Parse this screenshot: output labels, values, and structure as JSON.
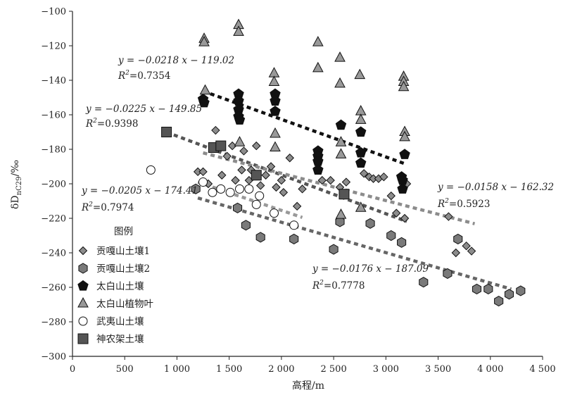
{
  "chart_data": {
    "type": "scatter",
    "xlabel": "高程/m",
    "ylabel": "δD",
    "ylabel_sub": "nC29",
    "ylabel_unit": "/‰",
    "xlim": [
      0,
      4500
    ],
    "ylim": [
      -300,
      -100
    ],
    "xticks": [
      0,
      500,
      1000,
      1500,
      2000,
      2500,
      3000,
      3500,
      4000,
      4500
    ],
    "xtick_labels": [
      "0",
      "500",
      "1 000",
      "1 500",
      "2 000",
      "2 500",
      "3 000",
      "3 500",
      "4 000",
      "4 500"
    ],
    "yticks": [
      -100,
      -120,
      -140,
      -160,
      -180,
      -200,
      -220,
      -240,
      -260,
      -280,
      -300
    ],
    "ytick_labels": [
      "−100",
      "−120",
      "−140",
      "−160",
      "−180",
      "−200",
      "−220",
      "−240",
      "−260",
      "−280",
      "−300"
    ],
    "grid": false,
    "legend_title": "图例",
    "legend_position": "bottom-left",
    "series": [
      {
        "name": "贡嘎山土壤1",
        "marker": "diamond",
        "fill": "#8c8c8c",
        "points": [
          [
            1200,
            -193
          ],
          [
            1250,
            -193
          ],
          [
            1300,
            -200
          ],
          [
            1370,
            -169
          ],
          [
            1430,
            -195
          ],
          [
            1480,
            -184
          ],
          [
            1530,
            -178
          ],
          [
            1560,
            -198
          ],
          [
            1620,
            -192
          ],
          [
            1640,
            -181
          ],
          [
            1690,
            -198
          ],
          [
            1710,
            -192
          ],
          [
            1760,
            -178
          ],
          [
            1800,
            -201
          ],
          [
            1850,
            -195
          ],
          [
            1900,
            -190
          ],
          [
            1950,
            -202
          ],
          [
            2000,
            -198
          ],
          [
            2020,
            -205
          ],
          [
            2080,
            -185
          ],
          [
            2150,
            -213
          ],
          [
            2200,
            -203
          ],
          [
            2390,
            -198
          ],
          [
            2470,
            -198
          ],
          [
            2560,
            -202
          ],
          [
            2620,
            -199
          ],
          [
            2790,
            -194
          ],
          [
            2840,
            -196
          ],
          [
            2880,
            -197
          ],
          [
            2930,
            -197
          ],
          [
            2980,
            -196
          ],
          [
            3050,
            -207
          ],
          [
            3100,
            -217
          ],
          [
            3180,
            -220
          ],
          [
            3200,
            -200
          ],
          [
            3600,
            -219
          ],
          [
            3670,
            -240
          ],
          [
            3770,
            -236
          ],
          [
            3820,
            -239
          ]
        ]
      },
      {
        "name": "贡嘎山土壤2",
        "marker": "hexagon",
        "fill": "#7a7a7a",
        "points": [
          [
            1180,
            -203
          ],
          [
            1580,
            -214
          ],
          [
            1660,
            -224
          ],
          [
            1800,
            -231
          ],
          [
            2120,
            -232
          ],
          [
            2500,
            -238
          ],
          [
            2560,
            -222
          ],
          [
            2850,
            -223
          ],
          [
            3050,
            -230
          ],
          [
            3150,
            -234
          ],
          [
            3360,
            -257
          ],
          [
            3590,
            -252
          ],
          [
            3690,
            -232
          ],
          [
            3870,
            -261
          ],
          [
            3980,
            -261
          ],
          [
            4080,
            -268
          ],
          [
            4180,
            -264
          ],
          [
            4290,
            -262
          ]
        ]
      },
      {
        "name": "太白山土壤",
        "marker": "pentagon",
        "fill": "#111111",
        "points": [
          [
            1250,
            -151
          ],
          [
            1260,
            -153
          ],
          [
            1590,
            -148
          ],
          [
            1590,
            -152
          ],
          [
            1590,
            -157
          ],
          [
            1590,
            -161
          ],
          [
            1600,
            -163
          ],
          [
            1940,
            -148
          ],
          [
            1940,
            -152
          ],
          [
            1940,
            -158
          ],
          [
            2350,
            -181
          ],
          [
            2350,
            -184
          ],
          [
            2350,
            -187
          ],
          [
            2350,
            -192
          ],
          [
            2570,
            -166
          ],
          [
            2760,
            -170
          ],
          [
            2760,
            -182
          ],
          [
            2760,
            -188
          ],
          [
            3150,
            -196
          ],
          [
            3160,
            -198
          ],
          [
            3160,
            -203
          ],
          [
            3180,
            -183
          ]
        ]
      },
      {
        "name": "太白山植物叶",
        "marker": "triangle",
        "fill": "#999999",
        "points": [
          [
            1260,
            -116
          ],
          [
            1260,
            -118
          ],
          [
            1270,
            -146
          ],
          [
            1590,
            -108
          ],
          [
            1590,
            -112
          ],
          [
            1600,
            -176
          ],
          [
            1930,
            -136
          ],
          [
            1930,
            -141
          ],
          [
            1940,
            -171
          ],
          [
            1940,
            -179
          ],
          [
            2350,
            -118
          ],
          [
            2350,
            -133
          ],
          [
            2560,
            -127
          ],
          [
            2560,
            -142
          ],
          [
            2570,
            -176
          ],
          [
            2570,
            -183
          ],
          [
            2570,
            -218
          ],
          [
            2750,
            -137
          ],
          [
            2760,
            -158
          ],
          [
            2760,
            -163
          ],
          [
            2760,
            -214
          ],
          [
            3170,
            -138
          ],
          [
            3170,
            -141
          ],
          [
            3170,
            -144
          ],
          [
            3180,
            -170
          ],
          [
            3180,
            -173
          ]
        ]
      },
      {
        "name": "武夷山土壤",
        "marker": "circle",
        "fill": "#ffffff",
        "points": [
          [
            750,
            -192
          ],
          [
            1250,
            -199
          ],
          [
            1340,
            -205
          ],
          [
            1420,
            -203
          ],
          [
            1510,
            -205
          ],
          [
            1600,
            -203
          ],
          [
            1690,
            -203
          ],
          [
            1760,
            -212
          ],
          [
            1790,
            -207
          ],
          [
            1930,
            -217
          ],
          [
            2120,
            -224
          ]
        ]
      },
      {
        "name": "神农架土壤",
        "marker": "square",
        "fill": "#555555",
        "points": [
          [
            900,
            -170
          ],
          [
            1350,
            -179
          ],
          [
            1420,
            -178
          ],
          [
            1760,
            -195
          ],
          [
            2600,
            -206
          ]
        ]
      }
    ],
    "trendlines": [
      {
        "series": "太白山植物叶",
        "slope": -0.0218,
        "intercept": -119.02,
        "x_range": [
          1250,
          3200
        ],
        "color": "#111111",
        "equation": "y = −0.0218 x − 119.02",
        "r2_label": "R",
        "r2_value": "=0.7354"
      },
      {
        "series": "神农架土壤",
        "slope": -0.0225,
        "intercept": -149.85,
        "x_range": [
          900,
          3200
        ],
        "color": "#555555",
        "equation": "y = −0.0225 x − 149.85",
        "r2_label": "R",
        "r2_value": "=0.9398"
      },
      {
        "series": "武夷山土壤",
        "slope": -0.0205,
        "intercept": -174.41,
        "x_range": [
          1200,
          2200
        ],
        "color": "#999999",
        "equation": "y = −0.0205 x − 174.41",
        "r2_label": "R",
        "r2_value": "=0.7974"
      },
      {
        "series": "贡嘎山土壤1",
        "slope": -0.0158,
        "intercept": -162.32,
        "x_range": [
          1250,
          3850
        ],
        "color": "#8c8c8c",
        "equation": "y = −0.0158 x − 162.32",
        "r2_label": "R",
        "r2_value": "=0.5923"
      },
      {
        "series": "贡嘎山土壤2",
        "slope": -0.0176,
        "intercept": -187.09,
        "x_range": [
          1200,
          4200
        ],
        "color": "#666666",
        "equation": "y = −0.0176 x − 187.09",
        "r2_label": "R",
        "r2_value": "=0.7778"
      }
    ]
  }
}
